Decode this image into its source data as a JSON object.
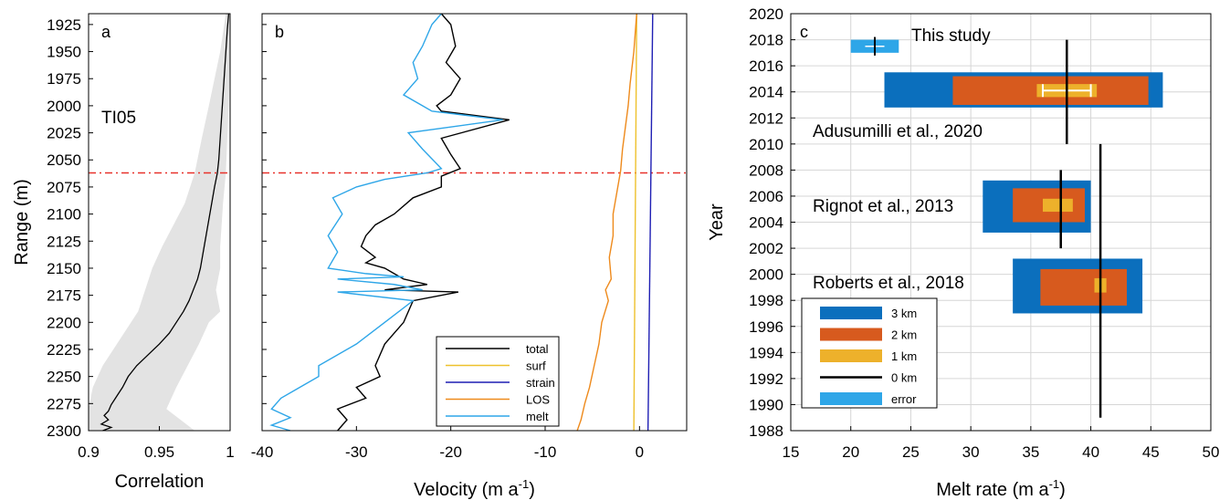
{
  "chart_data": [
    {
      "type": "line",
      "panel_label": "a",
      "annotation": "TI05",
      "xlabel": "Correlation",
      "ylabel": "Range (m)",
      "xlim": [
        0.9,
        1.0
      ],
      "ylim": [
        2300,
        1915
      ],
      "xticks": [
        "0.9",
        "0.95",
        "1"
      ],
      "yticks": [
        "1925",
        "1950",
        "1975",
        "2000",
        "2025",
        "2050",
        "2075",
        "2100",
        "2125",
        "2150",
        "2175",
        "2200",
        "2225",
        "2250",
        "2275",
        "2300"
      ],
      "reference_line_range": 2062,
      "series": [
        {
          "name": "mean",
          "color": "#000000",
          "x": [
            0.999,
            0.998,
            0.997,
            0.996,
            0.995,
            0.994,
            0.993,
            0.992,
            0.991,
            0.989,
            0.987,
            0.985,
            0.983,
            0.981,
            0.979,
            0.977,
            0.974,
            0.971,
            0.967,
            0.962,
            0.957,
            0.95,
            0.942,
            0.934,
            0.928,
            0.924,
            0.92,
            0.916,
            0.914,
            0.911,
            0.914,
            0.909,
            0.916,
            0.91
          ],
          "y": [
            1915,
            1930,
            1950,
            1970,
            1990,
            2010,
            2030,
            2050,
            2062,
            2075,
            2090,
            2105,
            2120,
            2135,
            2150,
            2160,
            2170,
            2180,
            2190,
            2200,
            2210,
            2220,
            2230,
            2240,
            2250,
            2260,
            2268,
            2276,
            2282,
            2286,
            2290,
            2294,
            2297,
            2300
          ]
        }
      ],
      "band": {
        "name": "spread",
        "color": "#e3e3e3",
        "y": [
          1915,
          1950,
          2000,
          2030,
          2062,
          2090,
          2110,
          2130,
          2150,
          2170,
          2190,
          2200,
          2220,
          2240,
          2260,
          2280,
          2300
        ],
        "low": [
          0.997,
          0.993,
          0.985,
          0.98,
          0.975,
          0.968,
          0.96,
          0.952,
          0.945,
          0.94,
          0.935,
          0.93,
          0.92,
          0.91,
          0.903,
          0.9,
          0.9
        ],
        "high": [
          1.0,
          1.0,
          0.999,
          0.998,
          0.997,
          0.995,
          0.994,
          0.993,
          0.993,
          0.99,
          0.993,
          0.985,
          0.978,
          0.97,
          0.962,
          0.955,
          0.975
        ]
      }
    },
    {
      "type": "line",
      "panel_label": "b",
      "xlabel": "Velocity (m a",
      "xlabel_sup": "-1",
      "xlabel_end": ")",
      "xlim": [
        -40,
        5
      ],
      "ylim": [
        2300,
        1915
      ],
      "xticks": [
        "-40",
        "-30",
        "-20",
        "-10",
        "0"
      ],
      "reference_line_range": 2062,
      "legend_position": "bottom-right",
      "series": [
        {
          "name": "total",
          "color": "#000000",
          "x": [
            -21,
            -20,
            -19.5,
            -20.5,
            -19,
            -20,
            -21.5,
            -21,
            -13.8,
            -21,
            -20,
            -19,
            -21,
            -21,
            -24,
            -26,
            -28,
            -29,
            -29.5,
            -28,
            -29,
            -27,
            -26,
            -25,
            -22.5,
            -27,
            -19.2,
            -24,
            -25,
            -27,
            -28,
            -27.5,
            -30,
            -29,
            -32,
            -31,
            -32
          ],
          "y": [
            1915,
            1925,
            1945,
            1960,
            1975,
            1990,
            2000,
            2005,
            2013,
            2030,
            2045,
            2058,
            2065,
            2075,
            2085,
            2100,
            2110,
            2120,
            2130,
            2140,
            2145,
            2150,
            2155,
            2160,
            2165,
            2170,
            2172,
            2180,
            2200,
            2220,
            2240,
            2250,
            2260,
            2270,
            2280,
            2290,
            2300
          ]
        },
        {
          "name": "surf",
          "color": "#eec12c",
          "x": [
            -0.3,
            -0.6
          ],
          "y": [
            1915,
            2300
          ]
        },
        {
          "name": "strain",
          "color": "#1f1fb4",
          "x": [
            1.4,
            0.9
          ],
          "y": [
            1915,
            2300
          ]
        },
        {
          "name": "LOS",
          "color": "#ee8a1c",
          "x": [
            -0.3,
            -0.6,
            -1.0,
            -1.2,
            -1.5,
            -1.8,
            -2.0,
            -2.4,
            -2.8,
            -2.8,
            -3.2,
            -3.0,
            -3.6,
            -3.3,
            -4.0,
            -4.3,
            -4.8,
            -5.3,
            -5.8,
            -6.2,
            -6.6
          ],
          "y": [
            1915,
            1950,
            1980,
            2000,
            2020,
            2040,
            2060,
            2080,
            2100,
            2120,
            2140,
            2160,
            2170,
            2180,
            2200,
            2220,
            2240,
            2260,
            2275,
            2290,
            2300
          ]
        },
        {
          "name": "melt",
          "color": "#2ea6e8",
          "x": [
            -21,
            -22,
            -23,
            -24,
            -23.5,
            -25,
            -23,
            -22,
            -14.5,
            -24.5,
            -23,
            -21,
            -22.5,
            -27,
            -30,
            -32.5,
            -31.5,
            -33,
            -32,
            -33,
            -29,
            -25,
            -32,
            -26,
            -23,
            -32,
            -24,
            -27,
            -30,
            -34,
            -34,
            -36,
            -38,
            -39,
            -37,
            -39,
            -37
          ],
          "y": [
            1915,
            1925,
            1945,
            1960,
            1975,
            1990,
            2000,
            2005,
            2013,
            2025,
            2040,
            2058,
            2062,
            2068,
            2075,
            2085,
            2100,
            2120,
            2135,
            2150,
            2155,
            2158,
            2160,
            2165,
            2170,
            2172,
            2180,
            2200,
            2220,
            2240,
            2250,
            2260,
            2270,
            2280,
            2288,
            2295,
            2300
          ]
        }
      ]
    },
    {
      "type": "bar",
      "panel_label": "c",
      "xlabel": "Melt rate (m a",
      "xlabel_sup": "-1",
      "xlabel_end": ")",
      "ylabel": "Year",
      "xlim": [
        15,
        50
      ],
      "ylim": [
        1988,
        2020
      ],
      "xticks": [
        "15",
        "20",
        "25",
        "30",
        "35",
        "40",
        "45",
        "50"
      ],
      "yticks": [
        "1988",
        "1990",
        "1992",
        "1994",
        "1996",
        "1998",
        "2000",
        "2002",
        "2004",
        "2006",
        "2008",
        "2010",
        "2012",
        "2014",
        "2016",
        "2018",
        "2020"
      ],
      "grid": true,
      "legend_position": "bottom-left",
      "legend": [
        {
          "label": "3 km",
          "color": "#0b6fbd"
        },
        {
          "label": "2 km",
          "color": "#d75a1e"
        },
        {
          "label": "1 km",
          "color": "#edb12b"
        },
        {
          "label": "0 km",
          "color": "#000000"
        },
        {
          "label": "error",
          "color": "#2ea6e8"
        }
      ],
      "studies": [
        {
          "label": "This study",
          "error": [
            20,
            24,
            2017,
            2018
          ],
          "mark": {
            "x": 22,
            "y": [
              2017,
              2018
            ],
            "color": "#000000"
          },
          "mark_h": {
            "x": [
              21.2,
              22.8
            ],
            "y": 2017.5,
            "color": "#ffffff"
          }
        },
        {
          "label": "Adusumilli et al., 2020",
          "boxes": [
            {
              "range": "3 km",
              "x": [
                22.8,
                46.0
              ],
              "y": [
                2012.8,
                2015.5
              ],
              "color": "#0b6fbd"
            },
            {
              "range": "2 km",
              "x": [
                28.5,
                44.8
              ],
              "y": [
                2013.0,
                2015.2
              ],
              "color": "#d75a1e"
            },
            {
              "range": "1 km",
              "x": [
                35.5,
                40.5
              ],
              "y": [
                2013.6,
                2014.6
              ],
              "color": "#edb12b"
            }
          ],
          "vline": {
            "x": 38,
            "y": [
              2010,
              2018
            ]
          },
          "whisker": {
            "x": [
              36,
              40
            ],
            "y": 2014.1,
            "color": "#ffffff"
          }
        },
        {
          "label": "Rignot et al., 2013",
          "boxes": [
            {
              "range": "3 km",
              "x": [
                31.0,
                40.0
              ],
              "y": [
                2003.2,
                2007.2
              ],
              "color": "#0b6fbd"
            },
            {
              "range": "2 km",
              "x": [
                33.5,
                39.5
              ],
              "y": [
                2004.0,
                2006.6
              ],
              "color": "#d75a1e"
            },
            {
              "range": "1 km",
              "x": [
                36.0,
                38.5
              ],
              "y": [
                2004.8,
                2005.8
              ],
              "color": "#edb12b"
            }
          ],
          "vline": {
            "x": 37.5,
            "y": [
              2002,
              2008
            ]
          }
        },
        {
          "label": "Roberts et al., 2018",
          "boxes": [
            {
              "range": "3 km",
              "x": [
                33.5,
                44.3
              ],
              "y": [
                1997.0,
                2001.2
              ],
              "color": "#0b6fbd"
            },
            {
              "range": "2 km",
              "x": [
                35.8,
                43.0
              ],
              "y": [
                1997.6,
                2000.4
              ],
              "color": "#d75a1e"
            },
            {
              "range": "1 km",
              "x": [
                40.3,
                41.3
              ],
              "y": [
                1998.6,
                1999.7
              ],
              "color": "#edb12b"
            }
          ],
          "vline": {
            "x": 40.8,
            "y": [
              1989,
              2010
            ]
          }
        }
      ]
    }
  ]
}
